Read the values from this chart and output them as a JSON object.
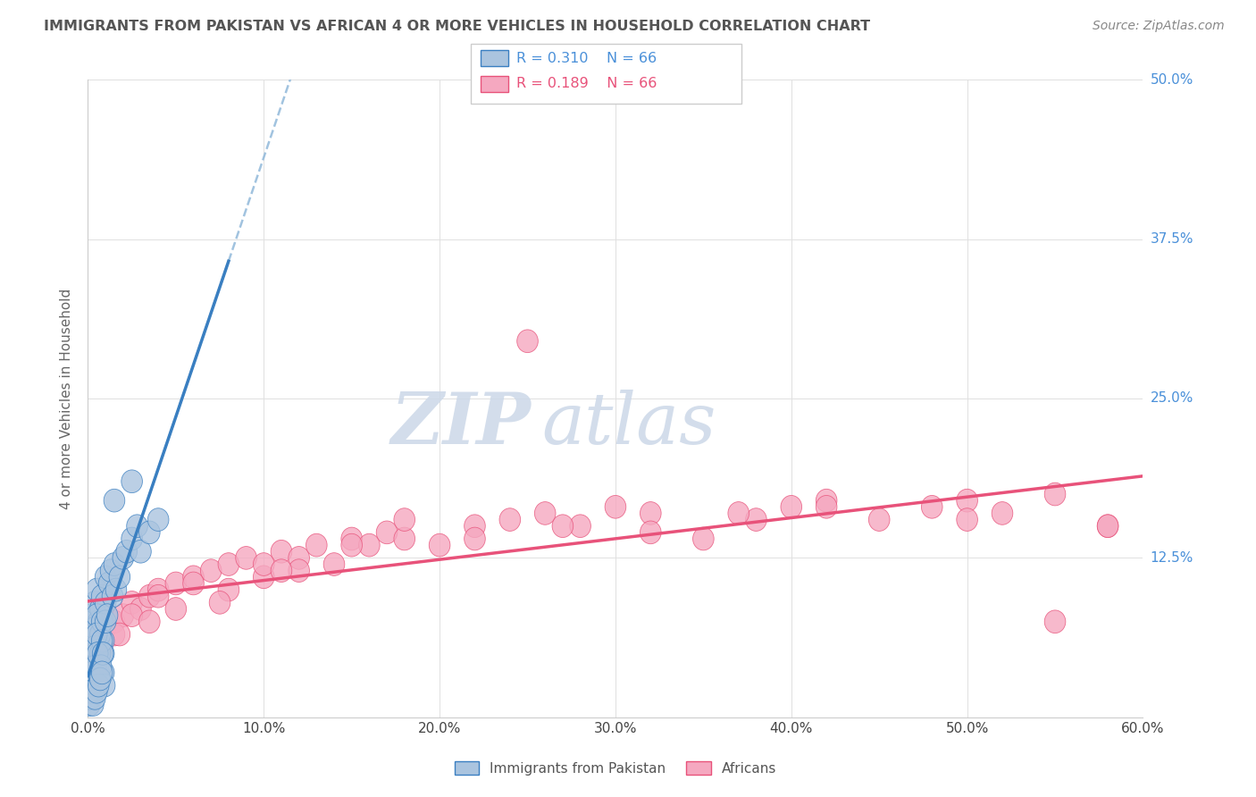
{
  "title": "IMMIGRANTS FROM PAKISTAN VS AFRICAN 4 OR MORE VEHICLES IN HOUSEHOLD CORRELATION CHART",
  "source": "Source: ZipAtlas.com",
  "ylabel_label": "4 or more Vehicles in Household",
  "legend_pakistan": "Immigrants from Pakistan",
  "legend_africans": "Africans",
  "R_pakistan": 0.31,
  "N_pakistan": 66,
  "R_africans": 0.189,
  "N_africans": 66,
  "color_pakistan": "#aac4df",
  "color_africans": "#f5a8c0",
  "line_pakistan_color": "#3a7fc1",
  "line_africans_color": "#e8527a",
  "dash_line_color": "#8ab4d8",
  "xlim": [
    0,
    60
  ],
  "ylim": [
    0,
    50
  ],
  "xtick_labels": [
    "0.0%",
    "10.0%",
    "20.0%",
    "30.0%",
    "40.0%",
    "50.0%",
    "60.0%"
  ],
  "ytick_vals": [
    0,
    12.5,
    25.0,
    37.5,
    50.0
  ],
  "ytick_labels_right": [
    "12.5%",
    "25.0%",
    "37.5%",
    "50.0%"
  ],
  "grid_color": "#e0e0e0",
  "background_color": "#ffffff",
  "watermark_text": "ZIPatlas",
  "watermark_color": "#ccd8e8",
  "pak_x": [
    0.1,
    0.2,
    0.3,
    0.4,
    0.5,
    0.6,
    0.7,
    0.8,
    0.9,
    1.0,
    0.1,
    0.2,
    0.3,
    0.4,
    0.5,
    0.6,
    0.7,
    0.8,
    0.9,
    1.0,
    0.1,
    0.2,
    0.3,
    0.4,
    0.5,
    0.6,
    0.7,
    0.8,
    0.9,
    1.0,
    1.2,
    1.3,
    1.4,
    1.5,
    1.6,
    1.8,
    2.0,
    2.2,
    2.5,
    2.8,
    0.15,
    0.25,
    0.35,
    0.45,
    0.55,
    0.65,
    0.75,
    0.85,
    0.95,
    1.1,
    3.0,
    3.5,
    4.0,
    0.05,
    0.05,
    0.1,
    0.15,
    0.2,
    0.3,
    0.4,
    0.5,
    0.6,
    0.7,
    0.8,
    1.5,
    2.5
  ],
  "pak_y": [
    7.0,
    8.0,
    6.5,
    9.0,
    10.0,
    7.5,
    8.5,
    9.5,
    6.0,
    11.0,
    5.0,
    6.0,
    4.5,
    7.0,
    8.0,
    5.5,
    6.5,
    7.5,
    5.0,
    9.0,
    3.5,
    4.5,
    3.0,
    5.5,
    6.5,
    4.0,
    5.0,
    6.0,
    3.5,
    7.5,
    10.5,
    11.5,
    9.5,
    12.0,
    10.0,
    11.0,
    12.5,
    13.0,
    14.0,
    15.0,
    2.5,
    3.5,
    2.0,
    4.0,
    5.0,
    3.0,
    4.0,
    5.0,
    2.5,
    8.0,
    13.0,
    14.5,
    15.5,
    1.5,
    2.0,
    1.0,
    1.5,
    2.0,
    1.0,
    1.5,
    2.0,
    2.5,
    3.0,
    3.5,
    17.0,
    18.5
  ],
  "afr_x": [
    0.2,
    0.5,
    1.0,
    1.5,
    2.0,
    2.5,
    3.0,
    3.5,
    4.0,
    5.0,
    6.0,
    7.0,
    8.0,
    9.0,
    10.0,
    11.0,
    12.0,
    13.0,
    14.0,
    15.0,
    16.0,
    17.0,
    18.0,
    20.0,
    22.0,
    24.0,
    26.0,
    28.0,
    30.0,
    32.0,
    35.0,
    38.0,
    40.0,
    42.0,
    45.0,
    48.0,
    50.0,
    52.0,
    55.0,
    58.0,
    0.3,
    0.8,
    1.5,
    2.5,
    4.0,
    6.0,
    8.0,
    10.0,
    12.0,
    15.0,
    18.0,
    22.0,
    27.0,
    32.0,
    37.0,
    42.0,
    50.0,
    58.0,
    3.5,
    7.5,
    0.5,
    1.8,
    5.0,
    11.0,
    25.0,
    55.0
  ],
  "afr_y": [
    5.0,
    6.0,
    7.0,
    7.5,
    8.0,
    9.0,
    8.5,
    9.5,
    10.0,
    10.5,
    11.0,
    11.5,
    12.0,
    12.5,
    11.0,
    13.0,
    12.5,
    13.5,
    12.0,
    14.0,
    13.5,
    14.5,
    14.0,
    13.5,
    15.0,
    15.5,
    16.0,
    15.0,
    16.5,
    16.0,
    14.0,
    15.5,
    16.5,
    17.0,
    15.5,
    16.5,
    17.0,
    16.0,
    17.5,
    15.0,
    4.0,
    5.5,
    6.5,
    8.0,
    9.5,
    10.5,
    10.0,
    12.0,
    11.5,
    13.5,
    15.5,
    14.0,
    15.0,
    14.5,
    16.0,
    16.5,
    15.5,
    15.0,
    7.5,
    9.0,
    3.0,
    6.5,
    8.5,
    11.5,
    29.5,
    7.5
  ]
}
